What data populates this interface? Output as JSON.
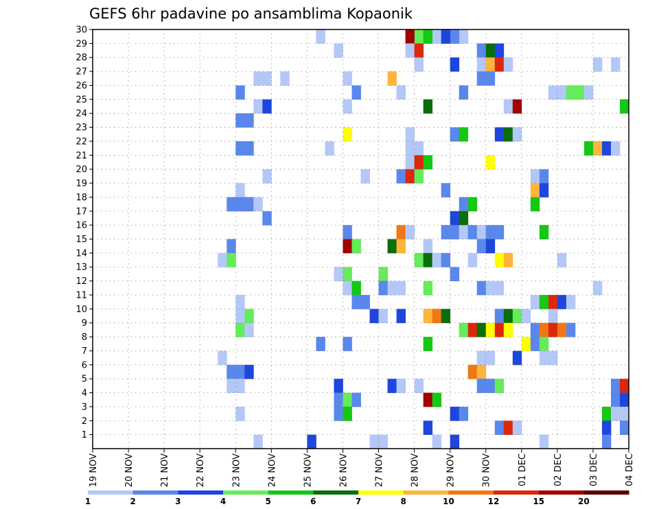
{
  "chart_data": {
    "type": "heatmap",
    "title": "GEFS 6hr padavine po ansamblima Kopaonik",
    "xlabel": "",
    "ylabel": "",
    "x_tick_labels": [
      "19 NOV",
      "20 NOV",
      "21 NOV",
      "22 NOV",
      "23 NOV",
      "24 NOV",
      "25 NOV",
      "26 NOV",
      "27 NOV",
      "28 NOV",
      "29 NOV",
      "30 NOV",
      "01 DEC",
      "02 DEC",
      "03 DEC",
      "04 DEC"
    ],
    "y_tick_labels": [
      "1",
      "2",
      "3",
      "4",
      "5",
      "6",
      "7",
      "8",
      "9",
      "10",
      "11",
      "12",
      "13",
      "14",
      "15",
      "16",
      "17",
      "18",
      "19",
      "20",
      "21",
      "22",
      "23",
      "24",
      "25",
      "26",
      "27",
      "28",
      "29",
      "30"
    ],
    "steps_per_day": 4,
    "x_range_steps": [
      0,
      60
    ],
    "y_range": [
      0,
      30
    ],
    "grid": true,
    "colorbar": {
      "labels": [
        "1",
        "2",
        "3",
        "4",
        "5",
        "6",
        "7",
        "8",
        "10",
        "12",
        "15",
        "20"
      ],
      "colors": [
        "#b4c8f8",
        "#5a87ec",
        "#1e46dc",
        "#64ec5a",
        "#14c814",
        "#0a6e0a",
        "#ffff00",
        "#ffb43c",
        "#f07814",
        "#dc280a",
        "#a00000",
        "#5a0000"
      ]
    },
    "cells": [
      [
        26,
        30,
        1
      ],
      [
        36,
        30,
        1
      ],
      [
        38,
        30,
        1
      ],
      [
        39,
        30,
        1
      ],
      [
        40,
        30,
        1
      ],
      [
        42,
        30,
        1
      ],
      [
        37,
        30,
        4
      ],
      [
        38,
        30,
        5
      ],
      [
        36,
        30,
        11
      ],
      [
        41,
        30,
        2
      ],
      [
        40,
        30,
        3
      ],
      [
        28,
        29,
        1
      ],
      [
        36,
        29,
        1
      ],
      [
        37,
        29,
        10
      ],
      [
        44,
        29,
        2
      ],
      [
        45,
        29,
        6
      ],
      [
        46,
        29,
        3
      ],
      [
        37,
        28,
        1
      ],
      [
        41,
        28,
        3
      ],
      [
        44,
        28,
        1
      ],
      [
        45,
        28,
        8
      ],
      [
        46,
        28,
        10
      ],
      [
        47,
        28,
        1
      ],
      [
        57,
        28,
        1
      ],
      [
        59,
        28,
        1
      ],
      [
        19,
        27,
        1
      ],
      [
        20,
        27,
        1
      ],
      [
        22,
        27,
        1
      ],
      [
        29,
        27,
        1
      ],
      [
        34,
        27,
        8
      ],
      [
        44,
        27,
        2
      ],
      [
        45,
        27,
        2
      ],
      [
        17,
        26,
        2
      ],
      [
        30,
        26,
        2
      ],
      [
        35,
        26,
        1
      ],
      [
        42,
        26,
        2
      ],
      [
        52,
        26,
        1
      ],
      [
        53,
        26,
        1
      ],
      [
        54,
        26,
        4
      ],
      [
        55,
        26,
        4
      ],
      [
        56,
        26,
        1
      ],
      [
        19,
        25,
        1
      ],
      [
        20,
        25,
        3
      ],
      [
        29,
        25,
        1
      ],
      [
        38,
        25,
        6
      ],
      [
        47,
        25,
        1
      ],
      [
        48,
        25,
        11
      ],
      [
        60,
        25,
        5
      ],
      [
        17,
        24,
        2
      ],
      [
        18,
        24,
        2
      ],
      [
        29,
        23,
        7
      ],
      [
        36,
        23,
        1
      ],
      [
        41,
        23,
        2
      ],
      [
        42,
        23,
        5
      ],
      [
        46,
        23,
        3
      ],
      [
        47,
        23,
        6
      ],
      [
        48,
        23,
        1
      ],
      [
        17,
        22,
        2
      ],
      [
        18,
        22,
        2
      ],
      [
        27,
        22,
        1
      ],
      [
        36,
        22,
        1
      ],
      [
        37,
        22,
        1
      ],
      [
        56,
        22,
        5
      ],
      [
        57,
        22,
        8
      ],
      [
        58,
        22,
        3
      ],
      [
        59,
        22,
        1
      ],
      [
        36,
        21,
        1
      ],
      [
        37,
        21,
        10
      ],
      [
        38,
        21,
        5
      ],
      [
        45,
        21,
        7
      ],
      [
        20,
        20,
        1
      ],
      [
        31,
        20,
        1
      ],
      [
        35,
        20,
        2
      ],
      [
        36,
        20,
        10
      ],
      [
        37,
        20,
        4
      ],
      [
        50,
        20,
        1
      ],
      [
        51,
        20,
        2
      ],
      [
        17,
        19,
        1
      ],
      [
        40,
        19,
        2
      ],
      [
        50,
        19,
        8
      ],
      [
        51,
        19,
        3
      ],
      [
        16,
        18,
        2
      ],
      [
        17,
        18,
        2
      ],
      [
        18,
        18,
        2
      ],
      [
        19,
        18,
        1
      ],
      [
        42,
        18,
        2
      ],
      [
        43,
        18,
        5
      ],
      [
        50,
        18,
        5
      ],
      [
        20,
        17,
        2
      ],
      [
        41,
        17,
        3
      ],
      [
        42,
        17,
        6
      ],
      [
        29,
        16,
        2
      ],
      [
        35,
        16,
        9
      ],
      [
        36,
        16,
        1
      ],
      [
        40,
        16,
        2
      ],
      [
        41,
        16,
        2
      ],
      [
        42,
        16,
        1
      ],
      [
        43,
        16,
        2
      ],
      [
        44,
        16,
        1
      ],
      [
        45,
        16,
        2
      ],
      [
        46,
        16,
        2
      ],
      [
        51,
        16,
        5
      ],
      [
        16,
        15,
        2
      ],
      [
        29,
        15,
        11
      ],
      [
        30,
        15,
        4
      ],
      [
        34,
        15,
        6
      ],
      [
        35,
        15,
        8
      ],
      [
        38,
        15,
        1
      ],
      [
        44,
        15,
        2
      ],
      [
        45,
        15,
        3
      ],
      [
        15,
        14,
        1
      ],
      [
        16,
        14,
        4
      ],
      [
        37,
        14,
        4
      ],
      [
        38,
        14,
        6
      ],
      [
        39,
        14,
        1
      ],
      [
        40,
        14,
        2
      ],
      [
        43,
        14,
        1
      ],
      [
        46,
        14,
        7
      ],
      [
        47,
        14,
        8
      ],
      [
        53,
        14,
        1
      ],
      [
        28,
        13,
        1
      ],
      [
        29,
        13,
        4
      ],
      [
        33,
        13,
        4
      ],
      [
        41,
        13,
        2
      ],
      [
        29,
        12,
        1
      ],
      [
        30,
        12,
        5
      ],
      [
        33,
        12,
        2
      ],
      [
        34,
        12,
        1
      ],
      [
        35,
        12,
        1
      ],
      [
        38,
        12,
        4
      ],
      [
        44,
        12,
        2
      ],
      [
        45,
        12,
        1
      ],
      [
        46,
        12,
        1
      ],
      [
        57,
        12,
        1
      ],
      [
        17,
        11,
        1
      ],
      [
        30,
        11,
        2
      ],
      [
        31,
        11,
        2
      ],
      [
        50,
        11,
        1
      ],
      [
        51,
        11,
        5
      ],
      [
        52,
        11,
        10
      ],
      [
        53,
        11,
        3
      ],
      [
        54,
        11,
        1
      ],
      [
        17,
        10,
        1
      ],
      [
        18,
        10,
        4
      ],
      [
        32,
        10,
        3
      ],
      [
        33,
        10,
        1
      ],
      [
        35,
        10,
        3
      ],
      [
        38,
        10,
        8
      ],
      [
        39,
        10,
        9
      ],
      [
        40,
        10,
        6
      ],
      [
        46,
        10,
        2
      ],
      [
        47,
        10,
        6
      ],
      [
        48,
        10,
        4
      ],
      [
        49,
        10,
        1
      ],
      [
        52,
        10,
        1
      ],
      [
        17,
        9,
        4
      ],
      [
        18,
        9,
        1
      ],
      [
        42,
        9,
        4
      ],
      [
        43,
        9,
        10
      ],
      [
        44,
        9,
        6
      ],
      [
        45,
        9,
        7
      ],
      [
        46,
        9,
        10
      ],
      [
        47,
        9,
        7
      ],
      [
        50,
        9,
        2
      ],
      [
        51,
        9,
        9
      ],
      [
        52,
        9,
        10
      ],
      [
        53,
        9,
        9
      ],
      [
        54,
        9,
        2
      ],
      [
        26,
        8,
        2
      ],
      [
        29,
        8,
        2
      ],
      [
        38,
        8,
        5
      ],
      [
        49,
        8,
        7
      ],
      [
        50,
        8,
        2
      ],
      [
        51,
        8,
        4
      ],
      [
        15,
        7,
        1
      ],
      [
        44,
        7,
        1
      ],
      [
        45,
        7,
        1
      ],
      [
        48,
        7,
        3
      ],
      [
        51,
        7,
        1
      ],
      [
        52,
        7,
        1
      ],
      [
        16,
        6,
        2
      ],
      [
        17,
        6,
        2
      ],
      [
        18,
        6,
        3
      ],
      [
        43,
        6,
        9
      ],
      [
        44,
        6,
        8
      ],
      [
        16,
        5,
        1
      ],
      [
        17,
        5,
        1
      ],
      [
        28,
        5,
        3
      ],
      [
        34,
        5,
        3
      ],
      [
        35,
        5,
        1
      ],
      [
        37,
        5,
        1
      ],
      [
        44,
        5,
        2
      ],
      [
        45,
        5,
        2
      ],
      [
        46,
        5,
        4
      ],
      [
        59,
        5,
        2
      ],
      [
        60,
        5,
        10
      ],
      [
        28,
        4,
        2
      ],
      [
        29,
        4,
        4
      ],
      [
        30,
        4,
        2
      ],
      [
        38,
        4,
        11
      ],
      [
        39,
        4,
        5
      ],
      [
        59,
        4,
        2
      ],
      [
        60,
        4,
        3
      ],
      [
        17,
        3,
        1
      ],
      [
        28,
        3,
        2
      ],
      [
        29,
        3,
        5
      ],
      [
        41,
        3,
        3
      ],
      [
        42,
        3,
        2
      ],
      [
        58,
        3,
        5
      ],
      [
        59,
        3,
        1
      ],
      [
        60,
        3,
        1
      ],
      [
        38,
        2,
        3
      ],
      [
        46,
        2,
        2
      ],
      [
        47,
        2,
        10
      ],
      [
        48,
        2,
        1
      ],
      [
        58,
        2,
        3
      ],
      [
        60,
        2,
        2
      ],
      [
        19,
        1,
        1
      ],
      [
        25,
        1,
        3
      ],
      [
        32,
        1,
        1
      ],
      [
        33,
        1,
        1
      ],
      [
        39,
        1,
        1
      ],
      [
        41,
        1,
        3
      ],
      [
        51,
        1,
        1
      ],
      [
        58,
        1,
        2
      ]
    ]
  }
}
